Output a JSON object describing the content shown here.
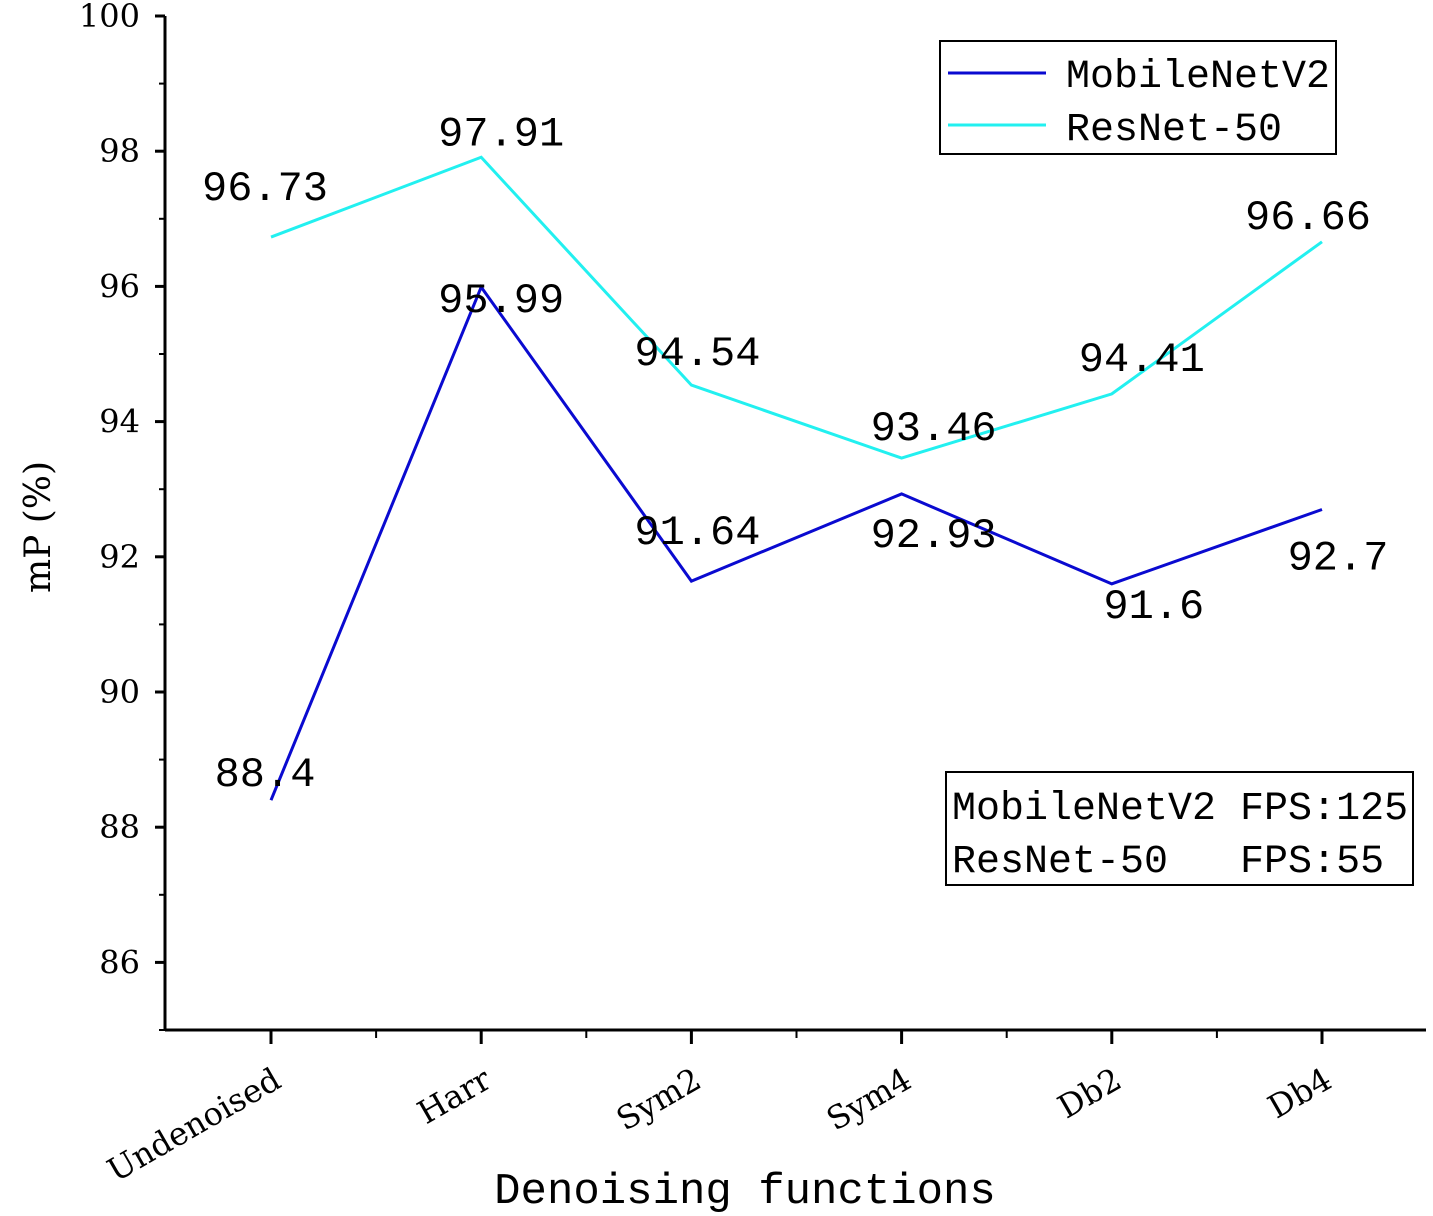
{
  "chart_data": {
    "type": "line",
    "xlabel": "Denoising functions",
    "ylabel": "mP (%)",
    "ylim": [
      85,
      100
    ],
    "yticks": [
      86,
      88,
      90,
      92,
      94,
      96,
      98,
      100
    ],
    "ytick_labels": [
      "86",
      "88",
      "90",
      "92",
      "94",
      "96",
      "98",
      "100"
    ],
    "categories": [
      "Undenoised",
      "Harr",
      "Sym2",
      "Sym4",
      "Db2",
      "Db4"
    ],
    "series": [
      {
        "name": "MobileNetV2",
        "color": "#0a0ad0",
        "values": [
          88.4,
          95.99,
          91.64,
          92.93,
          91.6,
          92.7
        ],
        "labels": [
          "88.4",
          "95.99",
          "91.64",
          "92.93",
          "91.6",
          "92.7"
        ]
      },
      {
        "name": "ResNet-50",
        "color": "#22f0f0",
        "values": [
          96.73,
          97.91,
          94.54,
          93.46,
          94.41,
          96.66
        ],
        "labels": [
          "96.73",
          "97.91",
          "94.54",
          "93.46",
          "94.41",
          "96.66"
        ]
      }
    ],
    "legend": {
      "position": "top-right",
      "entries": [
        "MobileNetV2",
        "ResNet-50"
      ]
    },
    "annotation": {
      "position": "bottom-right",
      "lines": [
        "MobileNetV2 FPS:125",
        "ResNet-50   FPS:55"
      ]
    }
  }
}
